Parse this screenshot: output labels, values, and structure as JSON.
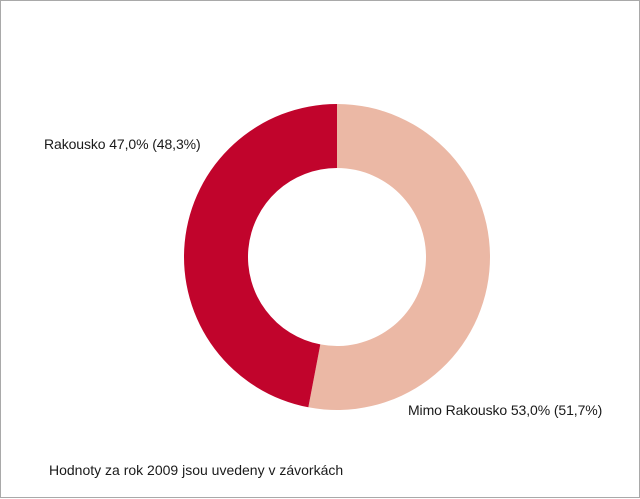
{
  "chart_data": {
    "type": "pie",
    "donut": true,
    "slices": [
      {
        "label": "Mimo Rakousko 53,0% (51,7%)",
        "value": 53.0,
        "value_2009": 51.7,
        "color": "#ebb8a5"
      },
      {
        "label": "Rakousko 47,0% (48,3%)",
        "value": 47.0,
        "value_2009": 48.3,
        "color": "#c1042c"
      }
    ],
    "note": "Hodnoty za rok 2009 jsou uvedeny v závorkách"
  }
}
